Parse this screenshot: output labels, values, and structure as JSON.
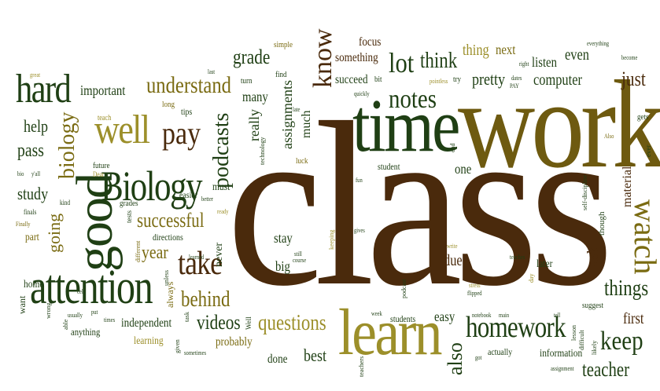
{
  "palette": {
    "brown": "#4a2a0c",
    "olive": "#7a6b12",
    "green": "#1f3f14",
    "khaki": "#9c8f2a",
    "darkgreen": "#24401a"
  },
  "words": [
    {
      "id": "class",
      "text": "class"
    },
    {
      "id": "work",
      "text": "work"
    },
    {
      "id": "time",
      "text": "time"
    },
    {
      "id": "learn",
      "text": "learn"
    },
    {
      "id": "attention",
      "text": "attention"
    },
    {
      "id": "good",
      "text": "good"
    },
    {
      "id": "biology_big",
      "text": "Biology"
    },
    {
      "id": "well",
      "text": "well"
    },
    {
      "id": "hard",
      "text": "hard"
    },
    {
      "id": "homework",
      "text": "homework"
    },
    {
      "id": "notes",
      "text": "notes"
    },
    {
      "id": "take",
      "text": "take"
    },
    {
      "id": "pay",
      "text": "pay"
    },
    {
      "id": "know",
      "text": "know"
    },
    {
      "id": "lot",
      "text": "lot"
    },
    {
      "id": "watch",
      "text": "watch"
    },
    {
      "id": "keep",
      "text": "keep"
    },
    {
      "id": "understand",
      "text": "understand"
    },
    {
      "id": "questions",
      "text": "questions"
    },
    {
      "id": "behind",
      "text": "behind"
    },
    {
      "id": "successful",
      "text": "successful"
    },
    {
      "id": "things",
      "text": "things"
    },
    {
      "id": "teacher",
      "text": "teacher"
    },
    {
      "id": "think",
      "text": "think"
    },
    {
      "id": "biology",
      "text": "biology"
    },
    {
      "id": "podcasts",
      "text": "podcasts"
    },
    {
      "id": "videos",
      "text": "videos"
    },
    {
      "id": "year",
      "text": "year"
    },
    {
      "id": "grade",
      "text": "grade"
    },
    {
      "id": "just",
      "text": "just"
    },
    {
      "id": "important",
      "text": "important"
    },
    {
      "id": "help",
      "text": "help"
    },
    {
      "id": "pass",
      "text": "pass"
    },
    {
      "id": "study",
      "text": "study"
    },
    {
      "id": "going",
      "text": "going"
    },
    {
      "id": "also",
      "text": "also"
    },
    {
      "id": "pretty",
      "text": "pretty"
    },
    {
      "id": "computer",
      "text": "computer"
    },
    {
      "id": "listen",
      "text": "listen"
    },
    {
      "id": "even",
      "text": "even"
    },
    {
      "id": "thing",
      "text": "thing"
    },
    {
      "id": "next",
      "text": "next"
    },
    {
      "id": "focus",
      "text": "focus"
    },
    {
      "id": "something",
      "text": "something"
    },
    {
      "id": "succeed",
      "text": "succeed"
    },
    {
      "id": "assignments",
      "text": "assignments"
    },
    {
      "id": "really",
      "text": "really"
    },
    {
      "id": "many",
      "text": "many"
    },
    {
      "id": "much",
      "text": "much"
    },
    {
      "id": "one",
      "text": "one"
    },
    {
      "id": "stay",
      "text": "stay"
    },
    {
      "id": "big",
      "text": "big"
    },
    {
      "id": "due",
      "text": "due"
    },
    {
      "id": "easy",
      "text": "easy"
    },
    {
      "id": "first",
      "text": "first"
    },
    {
      "id": "ask",
      "text": "ask"
    },
    {
      "id": "material",
      "text": "material"
    },
    {
      "id": "later",
      "text": "later"
    },
    {
      "id": "best",
      "text": "best"
    },
    {
      "id": "done",
      "text": "done"
    },
    {
      "id": "probably",
      "text": "probably"
    },
    {
      "id": "independent",
      "text": "independent"
    },
    {
      "id": "learning",
      "text": "learning"
    },
    {
      "id": "anything",
      "text": "anything"
    },
    {
      "id": "home",
      "text": "home"
    },
    {
      "id": "part",
      "text": "part"
    },
    {
      "id": "want",
      "text": "want"
    },
    {
      "id": "information",
      "text": "information"
    },
    {
      "id": "actually",
      "text": "actually"
    },
    {
      "id": "students",
      "text": "students"
    },
    {
      "id": "student",
      "text": "student"
    },
    {
      "id": "must",
      "text": "must"
    },
    {
      "id": "never",
      "text": "never"
    },
    {
      "id": "directions",
      "text": "directions"
    },
    {
      "id": "always",
      "text": "always"
    },
    {
      "id": "easier",
      "text": "easier"
    },
    {
      "id": "grades",
      "text": "grades"
    },
    {
      "id": "future",
      "text": "future"
    },
    {
      "id": "teach",
      "text": "teach"
    },
    {
      "id": "tips",
      "text": "tips"
    },
    {
      "id": "long",
      "text": "long"
    },
    {
      "id": "turn",
      "text": "turn"
    },
    {
      "id": "find",
      "text": "find"
    },
    {
      "id": "simple",
      "text": "simple"
    },
    {
      "id": "bit",
      "text": "bit"
    },
    {
      "id": "try",
      "text": "try"
    },
    {
      "id": "gets",
      "text": "gets"
    },
    {
      "id": "though",
      "text": "though"
    },
    {
      "id": "suggest",
      "text": "suggest"
    },
    {
      "id": "luck",
      "text": "luck"
    },
    {
      "id": "kind",
      "text": "kind"
    },
    {
      "id": "dear",
      "text": "Dear"
    },
    {
      "id": "finals",
      "text": "finals"
    },
    {
      "id": "finally",
      "text": "Finally"
    },
    {
      "id": "yall",
      "text": "y'all"
    },
    {
      "id": "bio",
      "text": "bio"
    },
    {
      "id": "tests",
      "text": "tests"
    },
    {
      "id": "different",
      "text": "different"
    },
    {
      "id": "learned",
      "text": "learned"
    },
    {
      "id": "ready",
      "text": "ready"
    },
    {
      "id": "better",
      "text": "better"
    },
    {
      "id": "unless",
      "text": "unless"
    },
    {
      "id": "cell",
      "text": "cell"
    },
    {
      "id": "wrong",
      "text": "wrong"
    },
    {
      "id": "usually",
      "text": "usually"
    },
    {
      "id": "put",
      "text": "put"
    },
    {
      "id": "times",
      "text": "times"
    },
    {
      "id": "task",
      "text": "task"
    },
    {
      "id": "given",
      "text": "given"
    },
    {
      "id": "sometimes",
      "text": "sometimes"
    },
    {
      "id": "well_small",
      "text": "Well"
    },
    {
      "id": "week",
      "text": "week"
    },
    {
      "id": "still",
      "text": "still"
    },
    {
      "id": "course",
      "text": "course"
    },
    {
      "id": "keeping",
      "text": "keeping"
    },
    {
      "id": "gives",
      "text": "gives"
    },
    {
      "id": "fun",
      "text": "fun"
    },
    {
      "id": "podcast",
      "text": "podcast"
    },
    {
      "id": "write",
      "text": "write"
    },
    {
      "id": "stress",
      "text": "stress"
    },
    {
      "id": "flipped",
      "text": "flipped"
    },
    {
      "id": "teaches",
      "text": "teaches"
    },
    {
      "id": "day",
      "text": "day"
    },
    {
      "id": "notebook",
      "text": "notebook"
    },
    {
      "id": "main",
      "text": "main"
    },
    {
      "id": "tell",
      "text": "tell"
    },
    {
      "id": "got",
      "text": "got"
    },
    {
      "id": "lesson",
      "text": "lesson"
    },
    {
      "id": "assignment",
      "text": "assignment"
    },
    {
      "id": "difficult",
      "text": "difficult"
    },
    {
      "id": "likely",
      "text": "likely"
    },
    {
      "id": "teachers",
      "text": "teachers"
    },
    {
      "id": "self_discipline",
      "text": "self-discipline"
    },
    {
      "id": "ever",
      "text": "ever"
    },
    {
      "id": "also_small",
      "text": "Also"
    },
    {
      "id": "everything",
      "text": "everything"
    },
    {
      "id": "become",
      "text": "become"
    },
    {
      "id": "right",
      "text": "right"
    },
    {
      "id": "dates",
      "text": "dates"
    },
    {
      "id": "pay_caps",
      "text": "PAY"
    },
    {
      "id": "pointless",
      "text": "pointless"
    },
    {
      "id": "quickly",
      "text": "quickly"
    },
    {
      "id": "late",
      "text": "late"
    },
    {
      "id": "technology",
      "text": "technology"
    },
    {
      "id": "end",
      "text": "end"
    },
    {
      "id": "great",
      "text": "great"
    },
    {
      "id": "last",
      "text": "last"
    },
    {
      "id": "able",
      "text": "able"
    }
  ]
}
